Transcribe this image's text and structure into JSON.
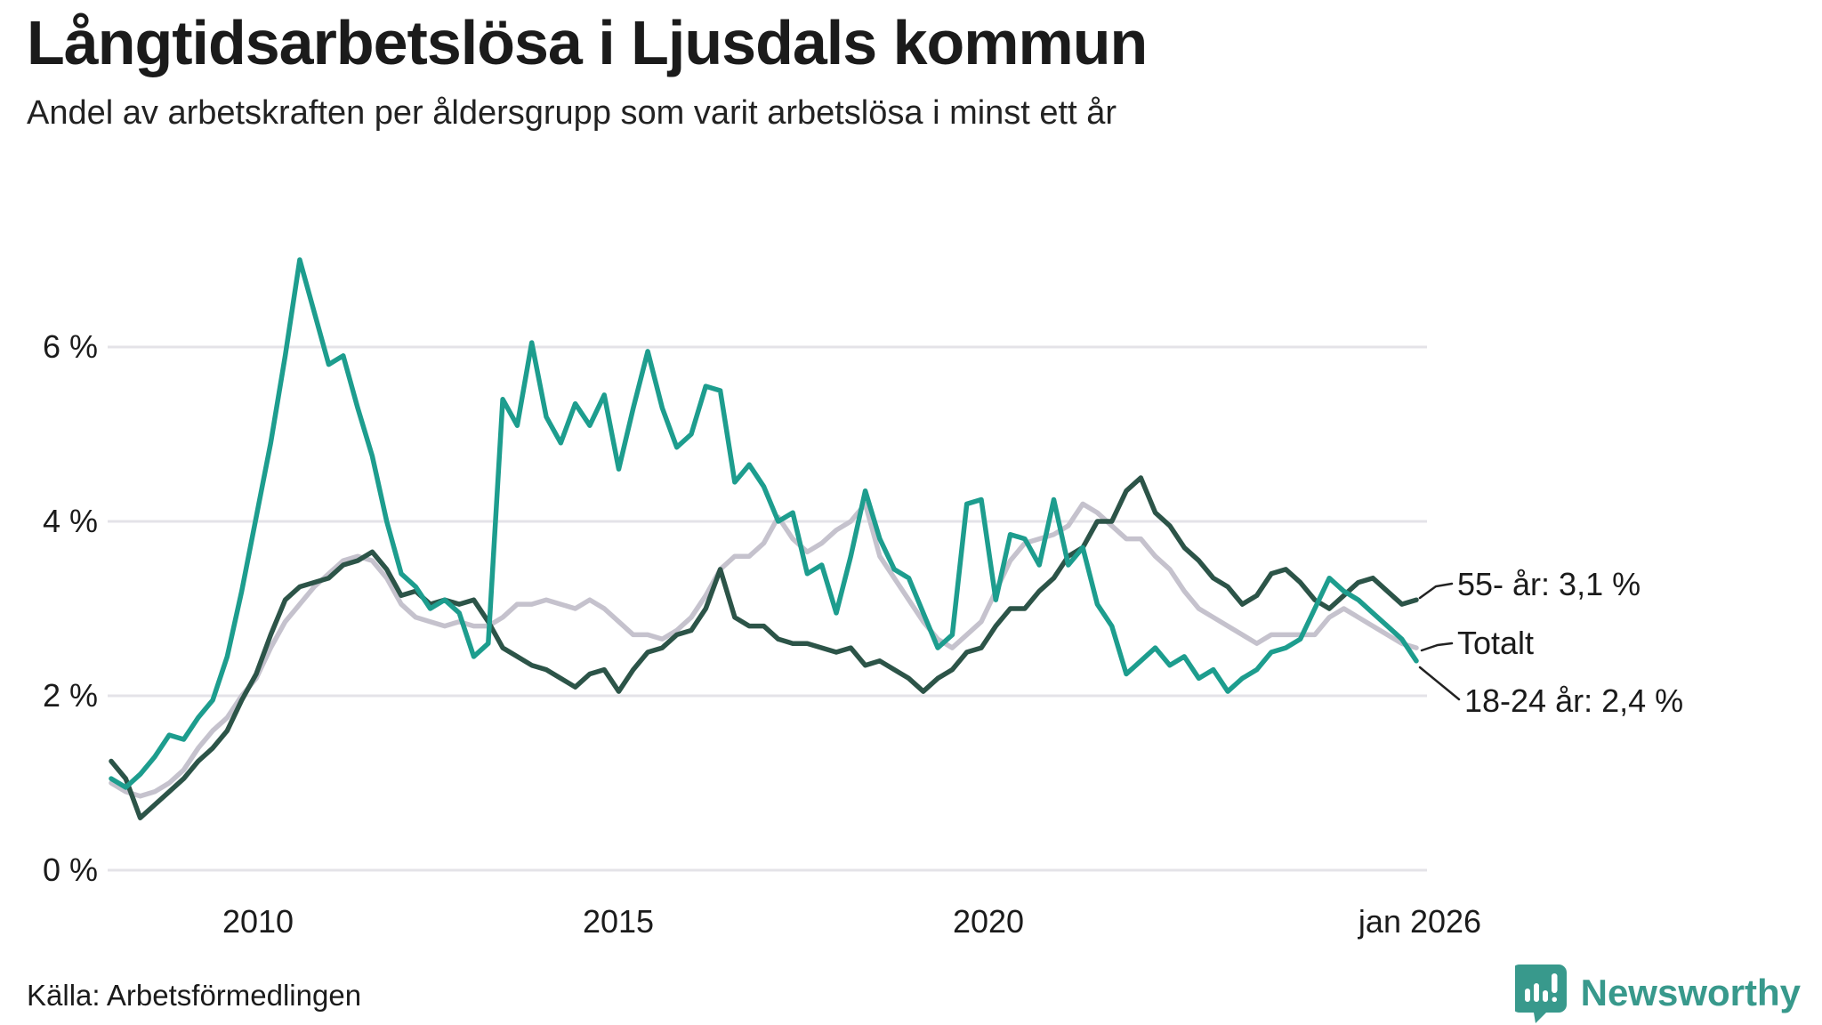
{
  "title": "Långtidsarbetslösa i Ljusdals kommun",
  "subtitle": "Andel av arbetskraften per åldersgrupp som varit arbetslösa i minst ett år",
  "source": "Källa: Arbetsförmedlingen",
  "branding": {
    "name": "Newsworthy",
    "color": "#38998c"
  },
  "colors": {
    "background": "#ffffff",
    "grid": "#e4e3e8",
    "text": "#1b1b1b",
    "leader": "#222222"
  },
  "chart_data": {
    "type": "line",
    "title": "Långtidsarbetslösa i Ljusdals kommun",
    "subtitle": "Andel av arbetskraften per åldersgrupp som varit arbetslösa i minst ett år",
    "unit": "% av arbetskraften",
    "x_axis": {
      "ticks": [
        "2010",
        "2015",
        "2020",
        "jan 2026"
      ],
      "tick_positions": [
        2010,
        2015,
        2020,
        2026.04
      ],
      "range": [
        2008,
        2026.08
      ]
    },
    "y_axis": {
      "ticks": [
        "0 %",
        "2 %",
        "4 %",
        "6 %"
      ],
      "tick_values": [
        0,
        2,
        4,
        6
      ],
      "range": [
        0,
        7.3
      ],
      "grid": true
    },
    "x_start": 2008.0,
    "x_step": 0.2,
    "legend_position": "end-of-line-labels",
    "series": [
      {
        "id": "totalt",
        "name": "Totalt",
        "label": "Totalt",
        "color": "#c5c2cd",
        "values": [
          1.0,
          0.9,
          0.85,
          0.9,
          1.0,
          1.15,
          1.4,
          1.6,
          1.75,
          2.0,
          2.2,
          2.55,
          2.85,
          3.05,
          3.25,
          3.4,
          3.55,
          3.6,
          3.55,
          3.35,
          3.05,
          2.9,
          2.85,
          2.8,
          2.85,
          2.8,
          2.8,
          2.9,
          3.05,
          3.05,
          3.1,
          3.05,
          3.0,
          3.1,
          3.0,
          2.85,
          2.7,
          2.7,
          2.65,
          2.75,
          2.9,
          3.15,
          3.45,
          3.6,
          3.6,
          3.75,
          4.05,
          3.8,
          3.65,
          3.75,
          3.9,
          4.0,
          4.2,
          3.6,
          3.35,
          3.1,
          2.85,
          2.65,
          2.55,
          2.7,
          2.85,
          3.2,
          3.55,
          3.75,
          3.8,
          3.85,
          3.95,
          4.2,
          4.1,
          3.95,
          3.8,
          3.8,
          3.6,
          3.45,
          3.2,
          3.0,
          2.9,
          2.8,
          2.7,
          2.6,
          2.7,
          2.7,
          2.7,
          2.7,
          2.9,
          3.0,
          2.9,
          2.8,
          2.7,
          2.6,
          2.55
        ]
      },
      {
        "id": "55plus",
        "name": "55- år",
        "label": "55- år: 3,1 %",
        "end_value": "3,1 %",
        "color": "#2c5448",
        "values": [
          1.25,
          1.05,
          0.6,
          0.75,
          0.9,
          1.05,
          1.25,
          1.4,
          1.6,
          1.95,
          2.25,
          2.7,
          3.1,
          3.25,
          3.3,
          3.35,
          3.5,
          3.55,
          3.65,
          3.45,
          3.15,
          3.2,
          3.05,
          3.1,
          3.05,
          3.1,
          2.85,
          2.55,
          2.45,
          2.35,
          2.3,
          2.2,
          2.1,
          2.25,
          2.3,
          2.05,
          2.3,
          2.5,
          2.55,
          2.7,
          2.75,
          3.0,
          3.45,
          2.9,
          2.8,
          2.8,
          2.65,
          2.6,
          2.6,
          2.55,
          2.5,
          2.55,
          2.35,
          2.4,
          2.3,
          2.2,
          2.05,
          2.2,
          2.3,
          2.5,
          2.55,
          2.8,
          3.0,
          3.0,
          3.2,
          3.35,
          3.6,
          3.7,
          4.0,
          4.0,
          4.35,
          4.5,
          4.1,
          3.95,
          3.7,
          3.55,
          3.35,
          3.25,
          3.05,
          3.15,
          3.4,
          3.45,
          3.3,
          3.1,
          3.0,
          3.15,
          3.3,
          3.35,
          3.2,
          3.05,
          3.1
        ]
      },
      {
        "id": "18-24",
        "name": "18-24 år",
        "label": "18-24 år: 2,4 %",
        "end_value": "2,4 %",
        "color": "#1d9d8e",
        "values": [
          1.05,
          0.95,
          1.1,
          1.3,
          1.55,
          1.5,
          1.75,
          1.95,
          2.45,
          3.2,
          4.05,
          4.9,
          5.9,
          7.0,
          6.4,
          5.8,
          5.9,
          5.3,
          4.75,
          4.0,
          3.4,
          3.25,
          3.0,
          3.1,
          2.95,
          2.45,
          2.6,
          5.4,
          5.1,
          6.05,
          5.2,
          4.9,
          5.35,
          5.1,
          5.45,
          4.6,
          5.3,
          5.95,
          5.3,
          4.85,
          5.0,
          5.55,
          5.5,
          4.45,
          4.65,
          4.4,
          4.0,
          4.1,
          3.4,
          3.5,
          2.95,
          3.6,
          4.35,
          3.8,
          3.45,
          3.35,
          2.95,
          2.55,
          2.7,
          4.2,
          4.25,
          3.1,
          3.85,
          3.8,
          3.5,
          4.25,
          3.5,
          3.7,
          3.05,
          2.8,
          2.25,
          2.4,
          2.55,
          2.35,
          2.45,
          2.2,
          2.3,
          2.05,
          2.2,
          2.3,
          2.5,
          2.55,
          2.65,
          3.0,
          3.35,
          3.2,
          3.1,
          2.95,
          2.8,
          2.65,
          2.4
        ]
      }
    ]
  }
}
